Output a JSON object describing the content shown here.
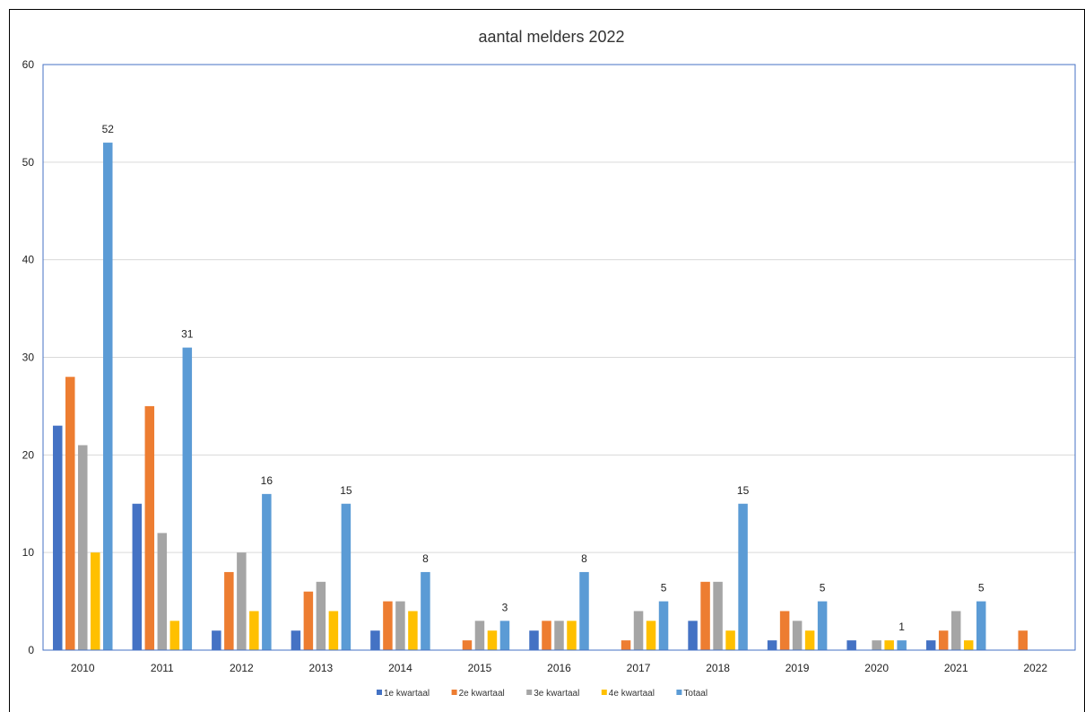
{
  "chart_data": {
    "type": "bar",
    "title": "aantal melders 2022",
    "xlabel": "",
    "ylabel": "",
    "ylim": [
      0,
      60
    ],
    "yticks": [
      0,
      10,
      20,
      30,
      40,
      50,
      60
    ],
    "grid": true,
    "legend_position": "bottom",
    "categories": [
      "2010",
      "2011",
      "2012",
      "2013",
      "2014",
      "2015",
      "2016",
      "2017",
      "2018",
      "2019",
      "2020",
      "2021",
      "2022"
    ],
    "series": [
      {
        "name": "1e kwartaal",
        "color": "#4472C4",
        "values": [
          23,
          15,
          2,
          2,
          2,
          0,
          2,
          0,
          3,
          1,
          1,
          1,
          0
        ]
      },
      {
        "name": "2e kwartaal",
        "color": "#ED7D31",
        "values": [
          28,
          25,
          8,
          6,
          5,
          1,
          3,
          1,
          7,
          4,
          0,
          2,
          2
        ]
      },
      {
        "name": "3e kwartaal",
        "color": "#A5A5A5",
        "values": [
          21,
          12,
          10,
          7,
          5,
          3,
          3,
          4,
          7,
          3,
          1,
          4,
          0
        ]
      },
      {
        "name": "4e kwartaal",
        "color": "#FFC000",
        "values": [
          10,
          3,
          4,
          4,
          4,
          2,
          3,
          3,
          2,
          2,
          1,
          1,
          0
        ]
      },
      {
        "name": "Totaal",
        "color": "#5B9BD5",
        "values": [
          52,
          31,
          16,
          15,
          8,
          3,
          8,
          5,
          15,
          5,
          1,
          5,
          null
        ]
      }
    ],
    "data_labels_series": "Totaal"
  }
}
